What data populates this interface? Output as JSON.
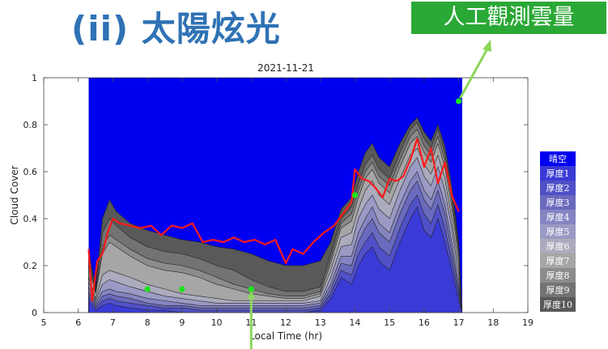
{
  "slide_title": "(ii) 太陽炫光",
  "annotation_badge": "人工觀測雲量",
  "colors": {
    "clear_sky": "#0000f0",
    "observed_line": "#ff1a1a",
    "manual_obs_dot": "#19e619",
    "badge_bg": "#2aa836",
    "title": "#2f72b5",
    "arrow": "#8cd65c"
  },
  "chart_data": {
    "type": "area",
    "title": "2021-11-21",
    "xlabel": "Local Time (hr)",
    "ylabel": "Cloud Cover",
    "xlim": [
      5,
      19
    ],
    "ylim": [
      0,
      1
    ],
    "x_ticks": [
      5,
      6,
      7,
      8,
      9,
      10,
      11,
      12,
      13,
      14,
      15,
      16,
      17,
      18,
      19
    ],
    "y_ticks": [
      0,
      0.2,
      0.4,
      0.6,
      0.8,
      1
    ],
    "y_tick_labels": [
      "0",
      "0.2",
      "0.4",
      "0.6",
      "0.8",
      "1"
    ],
    "grid": false,
    "legend_position": "right",
    "legend": [
      "晴空",
      "厚度1",
      "厚度2",
      "厚度3",
      "厚度4",
      "厚度5",
      "厚度6",
      "厚度7",
      "厚度8",
      "厚度9",
      "厚度10"
    ],
    "legend_colors": [
      "#0000f0",
      "#3a3ad6",
      "#5050c8",
      "#6a6abe",
      "#8585c2",
      "#9a9ac4",
      "#ababbd",
      "#a6a6a6",
      "#8c8c8c",
      "#737373",
      "#595959"
    ],
    "x": [
      6.3,
      6.5,
      6.7,
      6.9,
      7.1,
      7.5,
      8.0,
      8.5,
      9.0,
      9.5,
      10.0,
      10.5,
      11.0,
      11.5,
      12.0,
      12.5,
      13.0,
      13.3,
      13.6,
      13.9,
      14.1,
      14.3,
      14.5,
      14.7,
      15.0,
      15.3,
      15.6,
      15.8,
      16.0,
      16.2,
      16.4,
      16.6,
      16.8,
      17.0,
      17.1
    ],
    "stacked_cumulative": [
      [
        0.05,
        0.01,
        0.03,
        0.04,
        0.03,
        0.02,
        0.01,
        0.01,
        0.0,
        0.0,
        0.0,
        0.0,
        0.0,
        0.0,
        0.0,
        0.0,
        0.01,
        0.06,
        0.15,
        0.12,
        0.2,
        0.25,
        0.28,
        0.22,
        0.18,
        0.3,
        0.4,
        0.45,
        0.35,
        0.32,
        0.4,
        0.3,
        0.18,
        0.05,
        0.0
      ],
      [
        0.07,
        0.02,
        0.05,
        0.06,
        0.05,
        0.04,
        0.03,
        0.02,
        0.02,
        0.01,
        0.01,
        0.01,
        0.01,
        0.01,
        0.01,
        0.01,
        0.02,
        0.08,
        0.18,
        0.16,
        0.25,
        0.3,
        0.34,
        0.28,
        0.24,
        0.36,
        0.46,
        0.5,
        0.42,
        0.38,
        0.46,
        0.36,
        0.22,
        0.08,
        0.0
      ],
      [
        0.09,
        0.03,
        0.07,
        0.08,
        0.07,
        0.06,
        0.04,
        0.03,
        0.03,
        0.02,
        0.02,
        0.02,
        0.02,
        0.02,
        0.02,
        0.02,
        0.03,
        0.1,
        0.21,
        0.2,
        0.3,
        0.36,
        0.4,
        0.34,
        0.3,
        0.42,
        0.52,
        0.56,
        0.48,
        0.44,
        0.52,
        0.42,
        0.26,
        0.1,
        0.0
      ],
      [
        0.11,
        0.04,
        0.09,
        0.1,
        0.09,
        0.08,
        0.06,
        0.05,
        0.04,
        0.03,
        0.03,
        0.03,
        0.03,
        0.03,
        0.03,
        0.03,
        0.04,
        0.12,
        0.24,
        0.24,
        0.34,
        0.4,
        0.45,
        0.38,
        0.34,
        0.46,
        0.56,
        0.6,
        0.52,
        0.48,
        0.56,
        0.46,
        0.3,
        0.12,
        0.0
      ],
      [
        0.13,
        0.05,
        0.12,
        0.14,
        0.13,
        0.11,
        0.09,
        0.07,
        0.06,
        0.05,
        0.04,
        0.04,
        0.04,
        0.04,
        0.04,
        0.04,
        0.05,
        0.15,
        0.28,
        0.29,
        0.4,
        0.46,
        0.5,
        0.44,
        0.4,
        0.52,
        0.62,
        0.66,
        0.58,
        0.54,
        0.62,
        0.52,
        0.36,
        0.16,
        0.0
      ],
      [
        0.15,
        0.06,
        0.16,
        0.18,
        0.17,
        0.15,
        0.12,
        0.1,
        0.08,
        0.07,
        0.06,
        0.05,
        0.05,
        0.05,
        0.05,
        0.05,
        0.07,
        0.18,
        0.32,
        0.34,
        0.44,
        0.52,
        0.56,
        0.5,
        0.46,
        0.57,
        0.67,
        0.7,
        0.63,
        0.59,
        0.67,
        0.57,
        0.4,
        0.2,
        0.0
      ],
      [
        0.2,
        0.08,
        0.25,
        0.3,
        0.28,
        0.24,
        0.2,
        0.18,
        0.17,
        0.15,
        0.12,
        0.1,
        0.08,
        0.07,
        0.06,
        0.06,
        0.08,
        0.21,
        0.36,
        0.39,
        0.49,
        0.57,
        0.61,
        0.55,
        0.51,
        0.62,
        0.72,
        0.75,
        0.68,
        0.64,
        0.72,
        0.62,
        0.45,
        0.24,
        0.0
      ],
      [
        0.22,
        0.09,
        0.28,
        0.33,
        0.31,
        0.27,
        0.23,
        0.21,
        0.2,
        0.18,
        0.15,
        0.12,
        0.1,
        0.08,
        0.07,
        0.07,
        0.09,
        0.23,
        0.38,
        0.42,
        0.52,
        0.6,
        0.64,
        0.58,
        0.54,
        0.65,
        0.75,
        0.78,
        0.71,
        0.67,
        0.75,
        0.65,
        0.48,
        0.26,
        0.0
      ],
      [
        0.24,
        0.1,
        0.34,
        0.4,
        0.37,
        0.32,
        0.28,
        0.26,
        0.25,
        0.23,
        0.2,
        0.18,
        0.14,
        0.11,
        0.09,
        0.09,
        0.11,
        0.25,
        0.4,
        0.45,
        0.55,
        0.63,
        0.67,
        0.61,
        0.57,
        0.68,
        0.78,
        0.81,
        0.74,
        0.7,
        0.78,
        0.68,
        0.51,
        0.28,
        0.0
      ],
      [
        0.26,
        0.11,
        0.4,
        0.48,
        0.43,
        0.38,
        0.35,
        0.33,
        0.31,
        0.3,
        0.28,
        0.27,
        0.25,
        0.22,
        0.2,
        0.2,
        0.22,
        0.3,
        0.44,
        0.49,
        0.6,
        0.68,
        0.72,
        0.66,
        0.62,
        0.72,
        0.8,
        0.83,
        0.77,
        0.73,
        0.8,
        0.71,
        0.54,
        0.3,
        0.0
      ]
    ],
    "observed_line": {
      "x": [
        6.3,
        6.4,
        6.55,
        6.7,
        6.85,
        7.0,
        7.2,
        7.5,
        7.8,
        8.1,
        8.4,
        8.7,
        9.0,
        9.3,
        9.6,
        9.9,
        10.2,
        10.5,
        10.8,
        11.1,
        11.4,
        11.7,
        12.0,
        12.2,
        12.5,
        12.8,
        13.1,
        13.4,
        13.7,
        13.9,
        14.0,
        14.2,
        14.4,
        14.6,
        14.8,
        15.0,
        15.2,
        15.4,
        15.6,
        15.8,
        16.0,
        16.2,
        16.4,
        16.6,
        16.8,
        17.0
      ],
      "y": [
        0.27,
        0.05,
        0.22,
        0.25,
        0.34,
        0.4,
        0.38,
        0.37,
        0.36,
        0.37,
        0.33,
        0.37,
        0.36,
        0.38,
        0.3,
        0.31,
        0.3,
        0.32,
        0.3,
        0.31,
        0.29,
        0.31,
        0.21,
        0.27,
        0.25,
        0.3,
        0.34,
        0.37,
        0.43,
        0.47,
        0.61,
        0.57,
        0.56,
        0.53,
        0.49,
        0.57,
        0.56,
        0.58,
        0.65,
        0.74,
        0.62,
        0.7,
        0.55,
        0.64,
        0.5,
        0.43
      ]
    },
    "manual_observations": {
      "x": [
        8.0,
        9.0,
        11.0,
        14.0,
        17.0
      ],
      "y": [
        0.1,
        0.1,
        0.1,
        0.5,
        0.9
      ]
    }
  }
}
